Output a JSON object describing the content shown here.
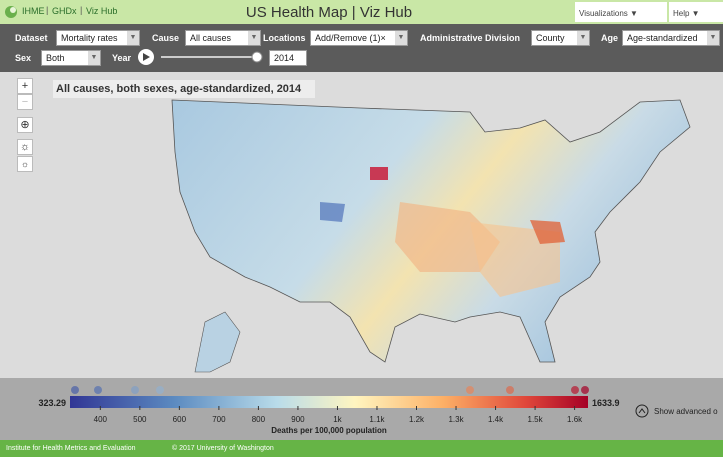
{
  "header": {
    "links": [
      "IHME",
      "GHDx",
      "Viz Hub"
    ],
    "title": "US Health Map | Viz Hub",
    "menus": [
      "Visualizations ▼",
      "Help ▼"
    ]
  },
  "controls": {
    "dataset": {
      "label": "Dataset",
      "value": "Mortality rates"
    },
    "cause": {
      "label": "Cause",
      "value": "All causes"
    },
    "locations": {
      "label": "Locations",
      "value": "Add/Remove (1)×"
    },
    "division": {
      "label": "Administrative Division",
      "value": "County"
    },
    "age": {
      "label": "Age",
      "value": "Age-standardized"
    },
    "sex": {
      "label": "Sex",
      "value": "Both"
    },
    "year": {
      "label": "Year",
      "value": "2014"
    }
  },
  "map": {
    "title": "All causes, both sexes, age-standardized, 2014"
  },
  "legend": {
    "min": 323.29,
    "max": 1633.9,
    "ticks": [
      400,
      500,
      600,
      700,
      800,
      900,
      {
        "value": 1000,
        "label": "1k"
      },
      {
        "value": 1100,
        "label": "1.1k"
      },
      {
        "value": 1200,
        "label": "1.2k"
      },
      {
        "value": 1300,
        "label": "1.3k"
      },
      {
        "value": 1400,
        "label": "1.4k"
      },
      {
        "value": 1500,
        "label": "1.5k"
      },
      {
        "value": 1600,
        "label": "1.6k"
      }
    ],
    "title": "Deaths per 100,000 population",
    "advanced": "Show advanced o"
  },
  "footer": [
    "Institute for Health Metrics and Evaluation",
    "© 2017 University of Washington"
  ]
}
